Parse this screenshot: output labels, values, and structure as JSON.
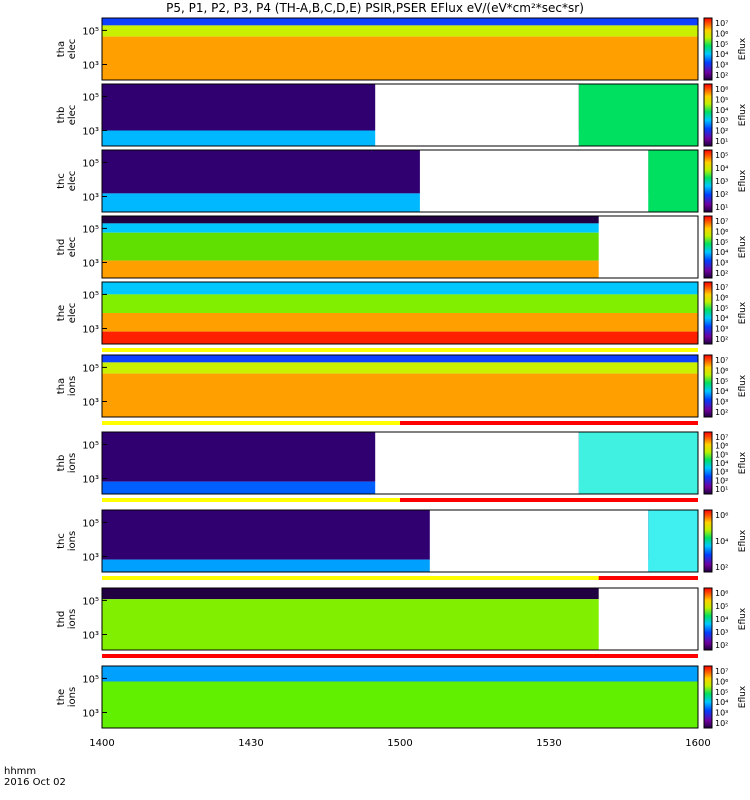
{
  "title": "P5, P1, P2, P3, P4 (TH-A,B,C,D,E) PSIR,PSER EFlux eV/(eV*cm²*sec*sr)",
  "footer": {
    "time_unit": "hhmm",
    "date": "2016 Oct 02"
  },
  "chart_data": {
    "type": "heatmap",
    "x_ticks": [
      "1400",
      "1430",
      "1500",
      "1530",
      "1600"
    ],
    "xlim": [
      "14:00",
      "16:00"
    ],
    "colorbar_label": "Eflux",
    "panels": [
      {
        "label": [
          "tha",
          "elec"
        ],
        "y_ticks": [
          "10⁵",
          "10³"
        ],
        "cbar_ticks": [
          "10⁷",
          "10⁶",
          "10⁵",
          "10⁴",
          "10³",
          "10²"
        ],
        "data_gaps": [],
        "mode_bar": null
      },
      {
        "label": [
          "thb",
          "elec"
        ],
        "y_ticks": [
          "10⁵",
          "10³"
        ],
        "cbar_ticks": [
          "10⁶",
          "10⁵",
          "10⁴",
          "10³",
          "10²",
          "10¹"
        ],
        "data_gaps": [
          [
            "14:55",
            "15:36"
          ]
        ],
        "mode_bar": null
      },
      {
        "label": [
          "thc",
          "elec"
        ],
        "y_ticks": [
          "10⁵",
          "10³"
        ],
        "cbar_ticks": [
          "10⁵",
          "10⁴",
          "10³",
          "10²",
          "10¹"
        ],
        "data_gaps": [
          [
            "15:04",
            "15:50"
          ]
        ],
        "mode_bar": null
      },
      {
        "label": [
          "thd",
          "elec"
        ],
        "y_ticks": [
          "10⁵",
          "10³"
        ],
        "cbar_ticks": [
          "10⁷",
          "10⁶",
          "10⁵",
          "10⁴",
          "10³",
          "10²"
        ],
        "data_gaps": [
          [
            "15:40",
            "16:00"
          ]
        ],
        "mode_bar": null
      },
      {
        "label": [
          "the",
          "elec"
        ],
        "y_ticks": [
          "10⁵",
          "10³"
        ],
        "cbar_ticks": [
          "10⁷",
          "10⁶",
          "10⁵",
          "10⁴",
          "10³",
          "10²"
        ],
        "data_gaps": [],
        "mode_bar": {
          "yellow_until": "16:00"
        }
      },
      {
        "label": [
          "tha",
          "ions"
        ],
        "y_ticks": [
          "10⁵",
          "10³"
        ],
        "cbar_ticks": [
          "10⁷",
          "10⁶",
          "10⁵",
          "10⁴",
          "10³",
          "10²"
        ],
        "data_gaps": [],
        "mode_bar": {
          "yellow_until": "15:00"
        }
      },
      {
        "label": [
          "thb",
          "ions"
        ],
        "y_ticks": [
          "10⁵",
          "10³"
        ],
        "cbar_ticks": [
          "10⁷",
          "10⁶",
          "10⁵",
          "10⁴",
          "10³",
          "10²",
          "10¹"
        ],
        "data_gaps": [
          [
            "14:55",
            "15:36"
          ]
        ],
        "mode_bar": {
          "yellow_until": "15:00"
        }
      },
      {
        "label": [
          "thc",
          "ions"
        ],
        "y_ticks": [
          "10⁵",
          "10³"
        ],
        "cbar_ticks": [
          "10⁶",
          "10⁴",
          "10²"
        ],
        "data_gaps": [
          [
            "15:06",
            "15:50"
          ]
        ],
        "mode_bar": {
          "yellow_until": "15:40"
        }
      },
      {
        "label": [
          "thd",
          "ions"
        ],
        "y_ticks": [
          "10⁵",
          "10³"
        ],
        "cbar_ticks": [
          "10⁶",
          "10⁵",
          "10⁴",
          "10³",
          "10²"
        ],
        "data_gaps": [
          [
            "15:40",
            "16:00"
          ]
        ],
        "mode_bar": {
          "yellow_until": "14:00"
        }
      },
      {
        "label": [
          "the",
          "ions"
        ],
        "y_ticks": [
          "10⁵",
          "10³"
        ],
        "cbar_ticks": [
          "10⁷",
          "10⁶",
          "10⁵",
          "10⁴",
          "10³",
          "10²"
        ],
        "data_gaps": [],
        "mode_bar": null
      }
    ]
  }
}
